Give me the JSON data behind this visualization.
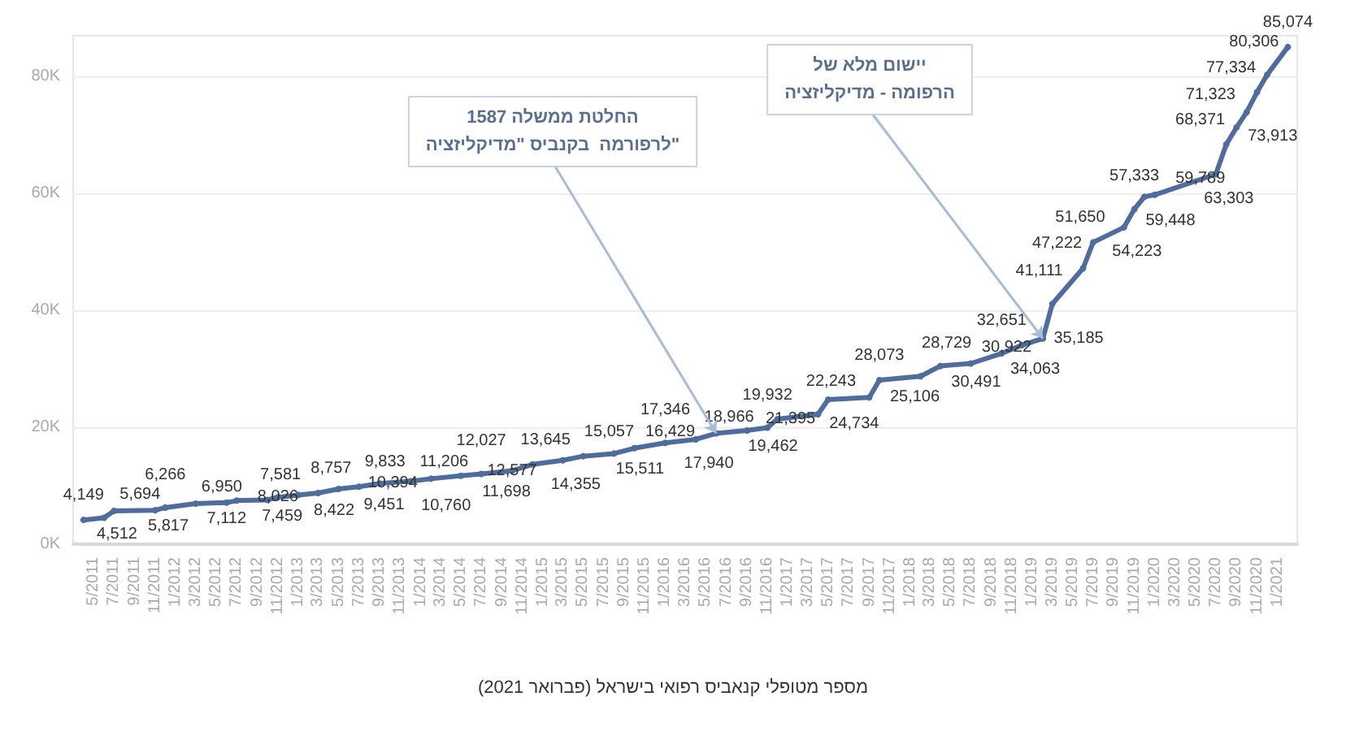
{
  "chart_data": {
    "type": "line",
    "color": "#4f6c9c",
    "marker": "circle",
    "line_style": "solid",
    "grid": "y",
    "x": [
      "2011-04",
      "2011-06",
      "2011-07",
      "2011-11",
      "2011-12",
      "2012-03",
      "2012-06",
      "2012-07",
      "2012-10",
      "2012-11",
      "2013-01",
      "2013-03",
      "2013-05",
      "2013-07",
      "2013-09",
      "2013-12",
      "2014-02",
      "2014-05",
      "2014-07",
      "2014-10",
      "2014-12",
      "2015-03",
      "2015-05",
      "2015-08",
      "2015-10",
      "2016-01",
      "2016-04",
      "2016-06",
      "2016-09",
      "2016-11",
      "2016-12",
      "2017-04",
      "2017-05",
      "2017-09",
      "2017-10",
      "2018-02",
      "2018-04",
      "2018-07",
      "2018-10",
      "2018-12",
      "2019-02",
      "2019-03",
      "2019-06",
      "2019-07",
      "2019-10",
      "2019-11",
      "2019-12",
      "2020-01",
      "2020-07",
      "2020-08",
      "2020-09",
      "2020-10",
      "2020-11",
      "2020-12",
      "2021-02"
    ],
    "values": [
      4149,
      4512,
      5694,
      5817,
      6266,
      6950,
      7112,
      7459,
      7581,
      8026,
      8422,
      8757,
      9451,
      9833,
      10394,
      10760,
      11206,
      11698,
      12027,
      12577,
      13645,
      14355,
      15057,
      15511,
      16429,
      17346,
      17940,
      18966,
      19462,
      19932,
      21395,
      22243,
      24734,
      25106,
      28073,
      28729,
      30491,
      30922,
      32651,
      34063,
      35185,
      41111,
      47222,
      51650,
      54223,
      57333,
      59448,
      59789,
      63303,
      68371,
      71323,
      73913,
      77334,
      80306,
      85074
    ],
    "value_labels": [
      "4,149",
      "4,512",
      "5,694",
      "5,817",
      "6,266",
      "6,950",
      "7,112",
      "7,459",
      "7,581",
      "8,026",
      "8,422",
      "8,757",
      "9,451",
      "9,833",
      "10,394",
      "10,760",
      "11,206",
      "11,698",
      "12,027",
      "12,577",
      "13,645",
      "14,355",
      "15,057",
      "15,511",
      "16,429",
      "17,346",
      "17,940",
      "18,966",
      "19,462",
      "19,932",
      "21,395",
      "22,243",
      "24,734",
      "25,106",
      "28,073",
      "28,729",
      "30,491",
      "30,922",
      "32,651",
      "34,063",
      "35,185",
      "41,111",
      "47,222",
      "51,650",
      "54,223",
      "57,333",
      "59,448",
      "59,789",
      "63,303",
      "68,371",
      "71,323",
      "73,913",
      "77,334",
      "80,306",
      "85,074"
    ],
    "xlim": [
      "2011-03",
      "2021-03"
    ],
    "xticks": [
      {
        "value": "2011-05",
        "label": "5/2011"
      },
      {
        "value": "2011-07",
        "label": "7/2011"
      },
      {
        "value": "2011-09",
        "label": "9/2011"
      },
      {
        "value": "2011-11",
        "label": "11/2011"
      },
      {
        "value": "2012-01",
        "label": "1/2012"
      },
      {
        "value": "2012-03",
        "label": "3/2012"
      },
      {
        "value": "2012-05",
        "label": "5/2012"
      },
      {
        "value": "2012-07",
        "label": "7/2012"
      },
      {
        "value": "2012-09",
        "label": "9/2012"
      },
      {
        "value": "2012-11",
        "label": "11/2012"
      },
      {
        "value": "2013-01",
        "label": "1/2013"
      },
      {
        "value": "2013-03",
        "label": "3/2013"
      },
      {
        "value": "2013-05",
        "label": "5/2013"
      },
      {
        "value": "2013-07",
        "label": "7/2013"
      },
      {
        "value": "2013-09",
        "label": "9/2013"
      },
      {
        "value": "2013-11",
        "label": "11/2013"
      },
      {
        "value": "2014-01",
        "label": "1/2014"
      },
      {
        "value": "2014-03",
        "label": "3/2014"
      },
      {
        "value": "2014-05",
        "label": "5/2014"
      },
      {
        "value": "2014-07",
        "label": "7/2014"
      },
      {
        "value": "2014-09",
        "label": "9/2014"
      },
      {
        "value": "2014-11",
        "label": "11/2014"
      },
      {
        "value": "2015-01",
        "label": "1/2015"
      },
      {
        "value": "2015-03",
        "label": "3/2015"
      },
      {
        "value": "2015-05",
        "label": "5/2015"
      },
      {
        "value": "2015-07",
        "label": "7/2015"
      },
      {
        "value": "2015-09",
        "label": "9/2015"
      },
      {
        "value": "2015-11",
        "label": "11/2015"
      },
      {
        "value": "2016-01",
        "label": "1/2016"
      },
      {
        "value": "2016-03",
        "label": "3/2016"
      },
      {
        "value": "2016-05",
        "label": "5/2016"
      },
      {
        "value": "2016-07",
        "label": "7/2016"
      },
      {
        "value": "2016-09",
        "label": "9/2016"
      },
      {
        "value": "2016-11",
        "label": "11/2016"
      },
      {
        "value": "2017-01",
        "label": "1/2017"
      },
      {
        "value": "2017-03",
        "label": "3/2017"
      },
      {
        "value": "2017-05",
        "label": "5/2017"
      },
      {
        "value": "2017-07",
        "label": "7/2017"
      },
      {
        "value": "2017-09",
        "label": "9/2017"
      },
      {
        "value": "2017-11",
        "label": "11/2017"
      },
      {
        "value": "2018-01",
        "label": "1/2018"
      },
      {
        "value": "2018-03",
        "label": "3/2018"
      },
      {
        "value": "2018-05",
        "label": "5/2018"
      },
      {
        "value": "2018-07",
        "label": "7/2018"
      },
      {
        "value": "2018-09",
        "label": "9/2018"
      },
      {
        "value": "2018-11",
        "label": "11/2018"
      },
      {
        "value": "2019-01",
        "label": "1/2019"
      },
      {
        "value": "2019-03",
        "label": "3/2019"
      },
      {
        "value": "2019-05",
        "label": "5/2019"
      },
      {
        "value": "2019-07",
        "label": "7/2019"
      },
      {
        "value": "2019-09",
        "label": "9/2019"
      },
      {
        "value": "2019-11",
        "label": "11/2019"
      },
      {
        "value": "2020-01",
        "label": "1/2020"
      },
      {
        "value": "2020-03",
        "label": "3/2020"
      },
      {
        "value": "2020-05",
        "label": "5/2020"
      },
      {
        "value": "2020-07",
        "label": "7/2020"
      },
      {
        "value": "2020-09",
        "label": "9/2020"
      },
      {
        "value": "2020-11",
        "label": "11/2020"
      },
      {
        "value": "2021-01",
        "label": "1/2021"
      }
    ],
    "ylim": [
      0,
      87000
    ],
    "yticks": [
      {
        "value": 0,
        "label": "0K"
      },
      {
        "value": 20000,
        "label": "20K"
      },
      {
        "value": 40000,
        "label": "40K"
      },
      {
        "value": 60000,
        "label": "60K"
      },
      {
        "value": 80000,
        "label": "80K"
      }
    ],
    "annotations": [
      {
        "text": "החלטת ממשלה 1587\nלרפורמה  בקנביס \"מדיקליזציה\"",
        "x": "2016-06",
        "y": 18966
      },
      {
        "text": "יישום מלא של\nהרפומה - מדיקליזציה",
        "x": "2019-02",
        "y": 35185
      },
      "מספר מטופלי קנאביס רפואי בישראל (פברואר 2021)"
    ]
  }
}
